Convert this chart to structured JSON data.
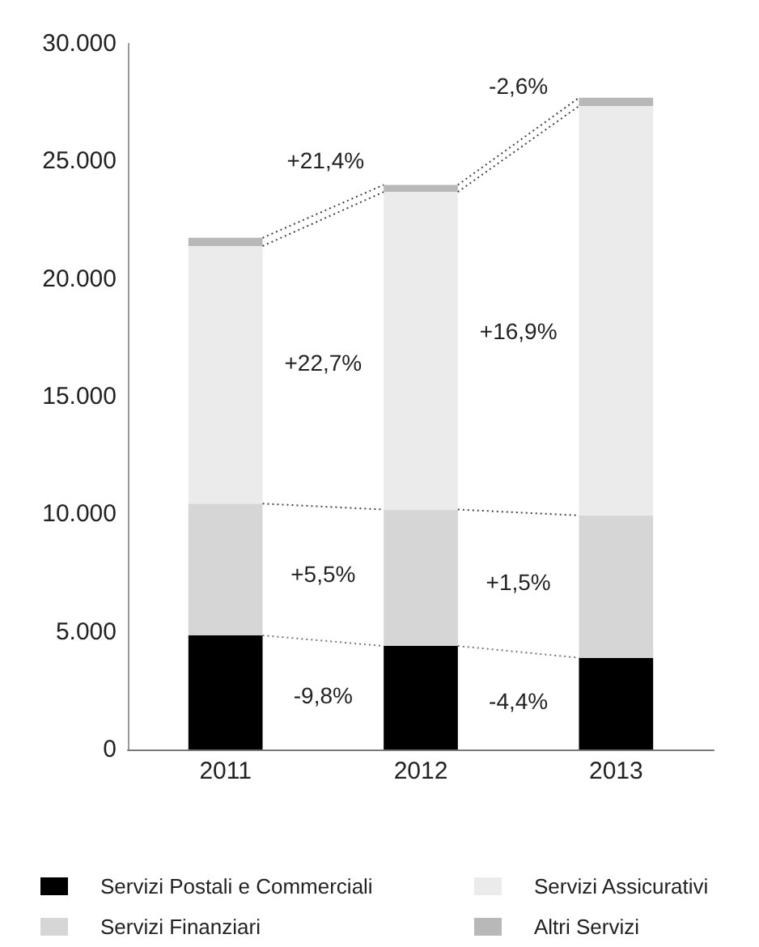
{
  "chart_data": {
    "type": "bar",
    "stacked": true,
    "categories": [
      "2011",
      "2012",
      "2013"
    ],
    "series": [
      {
        "name": "Servizi Postali e Commerciali",
        "color": "#000000",
        "values": [
          4850,
          4400,
          3900
        ]
      },
      {
        "name": "Servizi Finanziari",
        "color": "#d6d6d6",
        "values": [
          5600,
          5800,
          6050
        ]
      },
      {
        "name": "Servizi Assicurativi",
        "color": "#ebebeb",
        "values": [
          10950,
          13500,
          17400
        ]
      },
      {
        "name": "Altri Servizi",
        "color": "#b8b8b8",
        "values": [
          350,
          300,
          350
        ]
      }
    ],
    "ylim": [
      0,
      30000
    ],
    "yticks": [
      0,
      {
        "value": 5000,
        "label": "5.000"
      },
      {
        "value": 10000,
        "label": "10.000"
      },
      {
        "value": 15000,
        "label": "15.000"
      },
      {
        "value": 20000,
        "label": "20.000"
      },
      {
        "value": 25000,
        "label": "25.000"
      },
      {
        "value": 30000,
        "label": "30.000"
      }
    ],
    "legend": "bottom",
    "annotations": [
      "-9,8%",
      "+5,5%",
      "+22,7%",
      {
        "text": "+21,4%",
        "x": "2012",
        "y": 24000
      },
      "-4,4%",
      "+1,5%",
      "+16,9%",
      "-2,6%"
    ]
  }
}
